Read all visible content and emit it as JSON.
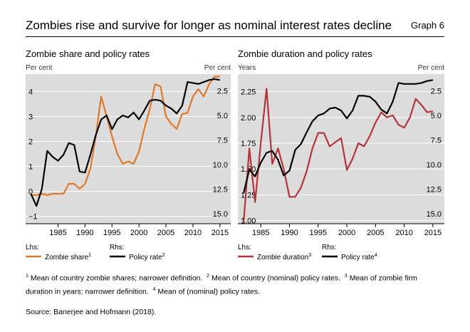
{
  "header": {
    "title": "Zombies rise and survive for longer as nominal interest rates decline",
    "graph_no": "Graph 6"
  },
  "colors": {
    "orange": "#e0782a",
    "red": "#b5333a",
    "black": "#000000",
    "plot_bg": "#dcdcdc"
  },
  "chart_data": [
    {
      "type": "line",
      "title": "Zombie share and policy rates",
      "ylabel_left": "Per cent",
      "ylabel_right": "Per cent",
      "x_ticks": [
        1985,
        1990,
        1995,
        2000,
        2005,
        2010,
        2015
      ],
      "x_range": [
        1979,
        2017
      ],
      "y_left": {
        "range": [
          -1.3,
          4.7
        ],
        "ticks": [
          4,
          3,
          2,
          1,
          0,
          -1
        ],
        "tick_labels": [
          "4",
          "3",
          "2",
          "1",
          "0",
          "−1"
        ]
      },
      "y_right": {
        "range": [
          16.0,
          0.8
        ],
        "ticks": [
          2.5,
          5.0,
          7.5,
          10.0,
          12.5,
          15.0
        ],
        "tick_labels": [
          "2.5",
          "5.0",
          "7.5",
          "10.0",
          "12.5",
          "15.0"
        ]
      },
      "legend_lhs_label": "Lhs:",
      "legend_rhs_label": "Rhs:",
      "series": [
        {
          "name": "Zombie share",
          "sup": "1",
          "axis": "left",
          "color": "orange",
          "x": [
            1980,
            1981,
            1982,
            1983,
            1984,
            1985,
            1986,
            1987,
            1988,
            1989,
            1990,
            1991,
            1992,
            1993,
            1994,
            1995,
            1996,
            1997,
            1998,
            1999,
            2000,
            2001,
            2002,
            2003,
            2004,
            2005,
            2006,
            2007,
            2008,
            2009,
            2010,
            2011,
            2012,
            2013,
            2014,
            2015
          ],
          "values": [
            -0.15,
            -0.15,
            -0.1,
            -0.15,
            -0.1,
            -0.1,
            -0.1,
            0.3,
            0.3,
            0.1,
            0.3,
            0.9,
            2.2,
            3.8,
            3.0,
            2.2,
            1.5,
            1.1,
            1.2,
            1.1,
            1.6,
            2.5,
            3.3,
            4.3,
            4.2,
            3.0,
            2.7,
            2.5,
            3.1,
            3.15,
            3.8,
            4.1,
            3.8,
            4.3,
            4.6,
            4.6
          ]
        },
        {
          "name": "Policy rate",
          "sup": "2",
          "axis": "right",
          "color": "black",
          "x": [
            1980,
            1981,
            1982,
            1983,
            1984,
            1985,
            1986,
            1987,
            1988,
            1989,
            1990,
            1991,
            1992,
            1993,
            1994,
            1995,
            1996,
            1997,
            1998,
            1999,
            2000,
            2001,
            2002,
            2003,
            2004,
            2005,
            2006,
            2007,
            2008,
            2009,
            2010,
            2011,
            2012,
            2013,
            2014,
            2015
          ],
          "values": [
            13.0,
            14.2,
            12.5,
            8.6,
            9.2,
            9.6,
            9.0,
            7.8,
            8.0,
            10.7,
            10.8,
            9.0,
            7.0,
            5.4,
            5.0,
            6.4,
            5.4,
            5.0,
            5.2,
            4.7,
            5.4,
            4.5,
            3.5,
            3.4,
            3.5,
            4.0,
            4.3,
            4.8,
            4.0,
            1.6,
            1.7,
            1.8,
            1.6,
            1.4,
            1.3,
            1.4
          ]
        }
      ]
    },
    {
      "type": "line",
      "title": "Zombie duration and policy rates",
      "ylabel_left": "Years",
      "ylabel_right": "Per cent",
      "x_ticks": [
        1985,
        1990,
        1995,
        2000,
        2005,
        2010,
        2015
      ],
      "x_range": [
        1981,
        2017
      ],
      "y_left": {
        "range": [
          0.97,
          2.42
        ],
        "ticks": [
          2.25,
          2.0,
          1.75,
          1.5,
          1.25,
          1.0
        ],
        "tick_labels": [
          "2.25",
          "2.00",
          "1.75",
          "1.50",
          "1.25",
          "1.00"
        ]
      },
      "y_right": {
        "range": [
          16.0,
          0.8
        ],
        "ticks": [
          2.5,
          5.0,
          7.5,
          10.0,
          12.5,
          15.0
        ],
        "tick_labels": [
          "2.5",
          "5.0",
          "7.5",
          "10.0",
          "12.5",
          "15.0"
        ]
      },
      "legend_lhs_label": "Lhs:",
      "legend_rhs_label": "Rhs:",
      "series": [
        {
          "name": "Zombie duration",
          "sup": "3",
          "axis": "left",
          "color": "red",
          "x": [
            1982,
            1983,
            1984,
            1985,
            1986,
            1987,
            1988,
            1989,
            1990,
            1991,
            1992,
            1993,
            1994,
            1995,
            1996,
            1997,
            1998,
            1999,
            2000,
            2001,
            2002,
            2003,
            2004,
            2005,
            2006,
            2007,
            2008,
            2009,
            2010,
            2011,
            2012,
            2013,
            2014,
            2015
          ],
          "values": [
            0.98,
            1.7,
            1.18,
            1.75,
            2.28,
            1.55,
            1.7,
            1.5,
            1.23,
            1.23,
            1.32,
            1.48,
            1.7,
            1.85,
            1.85,
            1.72,
            1.76,
            1.8,
            1.49,
            1.6,
            1.75,
            1.72,
            1.82,
            1.95,
            2.05,
            2.0,
            2.02,
            1.93,
            1.9,
            2.0,
            2.18,
            2.12,
            2.05,
            2.06
          ]
        },
        {
          "name": "Policy rate",
          "sup": "4",
          "axis": "right",
          "color": "black",
          "x": [
            1982,
            1983,
            1984,
            1985,
            1986,
            1987,
            1988,
            1989,
            1990,
            1991,
            1992,
            1993,
            1994,
            1995,
            1996,
            1997,
            1998,
            1999,
            2000,
            2001,
            2002,
            2003,
            2004,
            2005,
            2006,
            2007,
            2008,
            2009,
            2010,
            2011,
            2012,
            2013,
            2014,
            2015
          ],
          "values": [
            12.9,
            10.5,
            11.2,
            9.8,
            8.8,
            8.6,
            9.5,
            11.1,
            10.6,
            8.5,
            7.9,
            6.7,
            5.6,
            5.0,
            4.8,
            4.3,
            4.2,
            4.5,
            5.3,
            4.5,
            3.0,
            3.0,
            3.1,
            3.6,
            4.4,
            4.8,
            3.6,
            1.7,
            1.8,
            1.8,
            1.8,
            1.7,
            1.5,
            1.4
          ]
        }
      ]
    }
  ],
  "footnotes": {
    "n1": "1",
    "t1": " Mean of country zombie shares; narrower definition.",
    "n2": "2",
    "t2": " Mean of country (nominal) policy rates.",
    "n3": "3",
    "t3": " Mean of zombie firm duration in years; narrower definition.",
    "n4": "4",
    "t4": " Mean of (nominal) policy rates."
  },
  "source": "Source: Banerjee and Hofmann (2018)."
}
